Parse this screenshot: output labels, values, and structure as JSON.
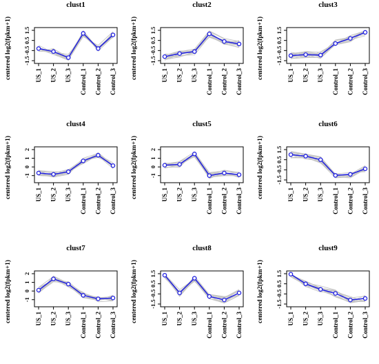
{
  "chart_data": [
    {
      "type": "line",
      "title": "clust1",
      "ylabel": "centered log2(fpkm+1)",
      "categories": [
        "US_1",
        "US_2",
        "US_3",
        "Control_1",
        "Control_2",
        "Control_3"
      ],
      "ylim": [
        -1.5,
        1.5
      ],
      "yticks": [
        "-1.5",
        "-0.5",
        "0.5",
        "1.5"
      ],
      "series": [
        {
          "values": [
            -0.3,
            -0.6,
            -1.2,
            1.2,
            -0.3,
            1.05
          ]
        }
      ],
      "background_lines": "gray"
    },
    {
      "type": "line",
      "title": "clust2",
      "ylabel": "centered log2(fpkm+1)",
      "categories": [
        "US_1",
        "US_2",
        "US_3",
        "Control_1",
        "Control_2",
        "Control_3"
      ],
      "ylim": [
        -1.5,
        1.5
      ],
      "yticks": [
        "-1.5",
        "-0.5",
        "0.5",
        "1.5"
      ],
      "series": [
        {
          "values": [
            -1.1,
            -0.8,
            -0.6,
            1.15,
            0.4,
            0.15
          ]
        }
      ],
      "background_lines": "gray"
    },
    {
      "type": "line",
      "title": "clust3",
      "ylabel": "centered log2(fpkm+1)",
      "categories": [
        "US_1",
        "US_2",
        "US_3",
        "Control_1",
        "Control_2",
        "Control_3"
      ],
      "ylim": [
        -1.5,
        1.5
      ],
      "yticks": [
        "-1.5",
        "-0.5",
        "0.5",
        "1.5"
      ],
      "series": [
        {
          "values": [
            -1.0,
            -0.9,
            -0.95,
            0.2,
            0.7,
            1.3
          ]
        }
      ],
      "background_lines": "gray"
    },
    {
      "type": "line",
      "title": "clust4",
      "ylabel": "centered log2(fpkm+1)",
      "categories": [
        "US_1",
        "US_2",
        "US_3",
        "Control_1",
        "Control_2",
        "Control_3"
      ],
      "ylim": [
        -1.5,
        2
      ],
      "yticks": [
        "-1",
        "0",
        "1",
        "2"
      ],
      "series": [
        {
          "values": [
            -0.7,
            -0.85,
            -0.55,
            0.7,
            1.35,
            0.15
          ]
        }
      ],
      "background_lines": "gray"
    },
    {
      "type": "line",
      "title": "clust5",
      "ylabel": "centered log2(fpkm+1)",
      "categories": [
        "US_1",
        "US_2",
        "US_3",
        "Control_1",
        "Control_2",
        "Control_3"
      ],
      "ylim": [
        -1.5,
        2
      ],
      "yticks": [
        "-1",
        "0",
        "1",
        "2"
      ],
      "series": [
        {
          "values": [
            0.2,
            0.3,
            1.5,
            -1.0,
            -0.7,
            -0.9
          ]
        }
      ],
      "background_lines": "gray"
    },
    {
      "type": "line",
      "title": "clust6",
      "ylabel": "centered log2(fpkm+1)",
      "categories": [
        "US_1",
        "US_2",
        "US_3",
        "Control_1",
        "Control_2",
        "Control_3"
      ],
      "ylim": [
        -1.5,
        1.5
      ],
      "yticks": [
        "-1.5",
        "-0.5",
        "0.5",
        "1.5"
      ],
      "series": [
        {
          "values": [
            1.0,
            0.85,
            0.5,
            -1.05,
            -0.95,
            -0.4
          ]
        }
      ],
      "background_lines": "gray"
    },
    {
      "type": "line",
      "title": "clust7",
      "ylabel": "centered log2(fpkm+1)",
      "categories": [
        "US_1",
        "US_2",
        "US_3",
        "Control_1",
        "Control_2",
        "Control_3"
      ],
      "ylim": [
        -1.5,
        2
      ],
      "yticks": [
        "-1",
        "0",
        "1",
        "2"
      ],
      "series": [
        {
          "values": [
            0.1,
            1.4,
            0.8,
            -0.5,
            -0.9,
            -0.8
          ]
        }
      ],
      "background_lines": "gray"
    },
    {
      "type": "line",
      "title": "clust8",
      "ylabel": "centered log2(fpkm+1)",
      "categories": [
        "US_1",
        "US_2",
        "US_3",
        "Control_1",
        "Control_2",
        "Control_3"
      ],
      "ylim": [
        -1.5,
        1.5
      ],
      "yticks": [
        "-1.5",
        "-0.5",
        "0.5",
        "1.5"
      ],
      "series": [
        {
          "values": [
            1.35,
            -0.4,
            1.05,
            -0.75,
            -1.1,
            -0.4
          ]
        }
      ],
      "background_lines": "gray"
    },
    {
      "type": "line",
      "title": "clust9",
      "ylabel": "centered log2(fpkm+1)",
      "categories": [
        "US_1",
        "US_2",
        "US_3",
        "Control_1",
        "Control_2",
        "Control_3"
      ],
      "ylim": [
        -1.5,
        1.5
      ],
      "yticks": [
        "-1.5",
        "-0.5",
        "0.5",
        "1.5"
      ],
      "series": [
        {
          "values": [
            1.45,
            0.5,
            -0.05,
            -0.45,
            -1.1,
            -0.95
          ]
        }
      ],
      "background_lines": "gray"
    }
  ],
  "style": {
    "line_color": "#1f1fe0",
    "background_line_color": "#c4c4c4"
  }
}
